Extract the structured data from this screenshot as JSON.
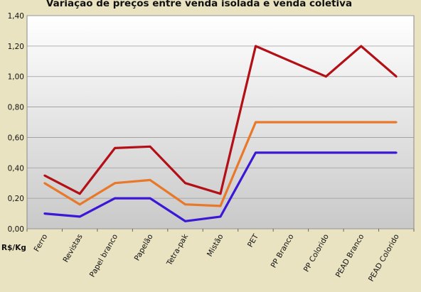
{
  "chart_data": {
    "type": "line",
    "title": "Variação de preços entre venda isolada e venda coletiva",
    "ylabel": "R$/Kg",
    "xlabel": "",
    "ylim": [
      0,
      1.4
    ],
    "y_ticks": [
      "0,00",
      "0,20",
      "0,40",
      "0,60",
      "0,80",
      "1,00",
      "1,20",
      "1,40"
    ],
    "categories": [
      "Ferro",
      "Revistas",
      "Papel branco",
      "Papelão",
      "Tetra-pak",
      "Mistão",
      "PET",
      "PP Branco",
      "PP Colorido",
      "PEAD Branco",
      "PEAD Colorido"
    ],
    "grid": true,
    "legend": "none",
    "series": [
      {
        "color": "#b30f16",
        "values": [
          0.35,
          0.23,
          0.53,
          0.54,
          0.3,
          0.23,
          1.2,
          1.1,
          1.0,
          1.2,
          1.0
        ]
      },
      {
        "color": "#e8782a",
        "values": [
          0.3,
          0.16,
          0.3,
          0.32,
          0.16,
          0.15,
          0.7,
          0.7,
          0.7,
          0.7,
          0.7
        ]
      },
      {
        "color": "#3b17d6",
        "values": [
          0.1,
          0.08,
          0.2,
          0.2,
          0.05,
          0.08,
          0.5,
          0.5,
          0.5,
          0.5,
          0.5
        ]
      }
    ]
  }
}
